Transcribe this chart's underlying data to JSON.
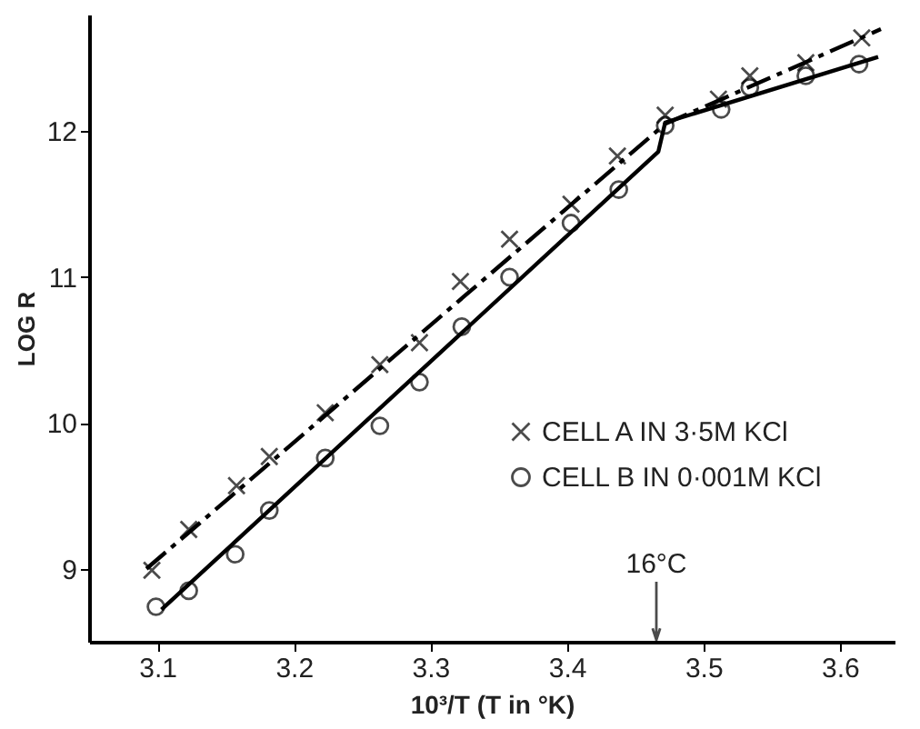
{
  "chart_data": {
    "type": "scatter",
    "xlabel": "10³/T (T in °K)",
    "ylabel": "LOG R",
    "xlim": [
      3.05,
      3.64
    ],
    "ylim": [
      8.5,
      12.8
    ],
    "xticks": [
      3.1,
      3.2,
      3.3,
      3.4,
      3.5,
      3.6
    ],
    "yticks": [
      9,
      10,
      11,
      12
    ],
    "grid": false,
    "legend": "bottom right",
    "series": [
      {
        "name": "CELL A IN 3·5M KCl",
        "marker": "cross",
        "color": "#000000",
        "x": [
          3.096,
          3.123,
          3.158,
          3.182,
          3.223,
          3.263,
          3.292,
          3.322,
          3.358,
          3.403,
          3.437,
          3.472,
          3.511,
          3.534,
          3.575,
          3.616
        ],
        "values": [
          8.99,
          9.27,
          9.57,
          9.77,
          10.07,
          10.4,
          10.55,
          10.97,
          11.26,
          11.5,
          11.83,
          12.11,
          12.22,
          12.38,
          12.47,
          12.64
        ]
      },
      {
        "name": "CELL B IN 0·001M KCl",
        "marker": "circle",
        "color": "#000000",
        "x": [
          3.099,
          3.123,
          3.157,
          3.182,
          3.223,
          3.263,
          3.292,
          3.323,
          3.358,
          3.403,
          3.438,
          3.472,
          3.513,
          3.534,
          3.575,
          3.614
        ],
        "values": [
          8.74,
          8.85,
          9.1,
          9.4,
          9.76,
          9.98,
          10.28,
          10.66,
          11.0,
          11.37,
          11.6,
          12.04,
          12.15,
          12.3,
          12.38,
          12.46
        ]
      },
      {
        "type": "line",
        "line_style": "dashed",
        "color": "#000000",
        "x": [
          3.092,
          3.472,
          3.63
        ],
        "values": [
          9.0,
          12.05,
          12.7
        ]
      },
      {
        "type": "line",
        "line_style": "solid",
        "color": "#000000",
        "x": [
          3.103,
          3.467,
          3.472,
          3.628
        ],
        "values": [
          8.72,
          11.86,
          12.06,
          12.51
        ]
      }
    ],
    "annotations": [
      "16°C"
    ]
  }
}
